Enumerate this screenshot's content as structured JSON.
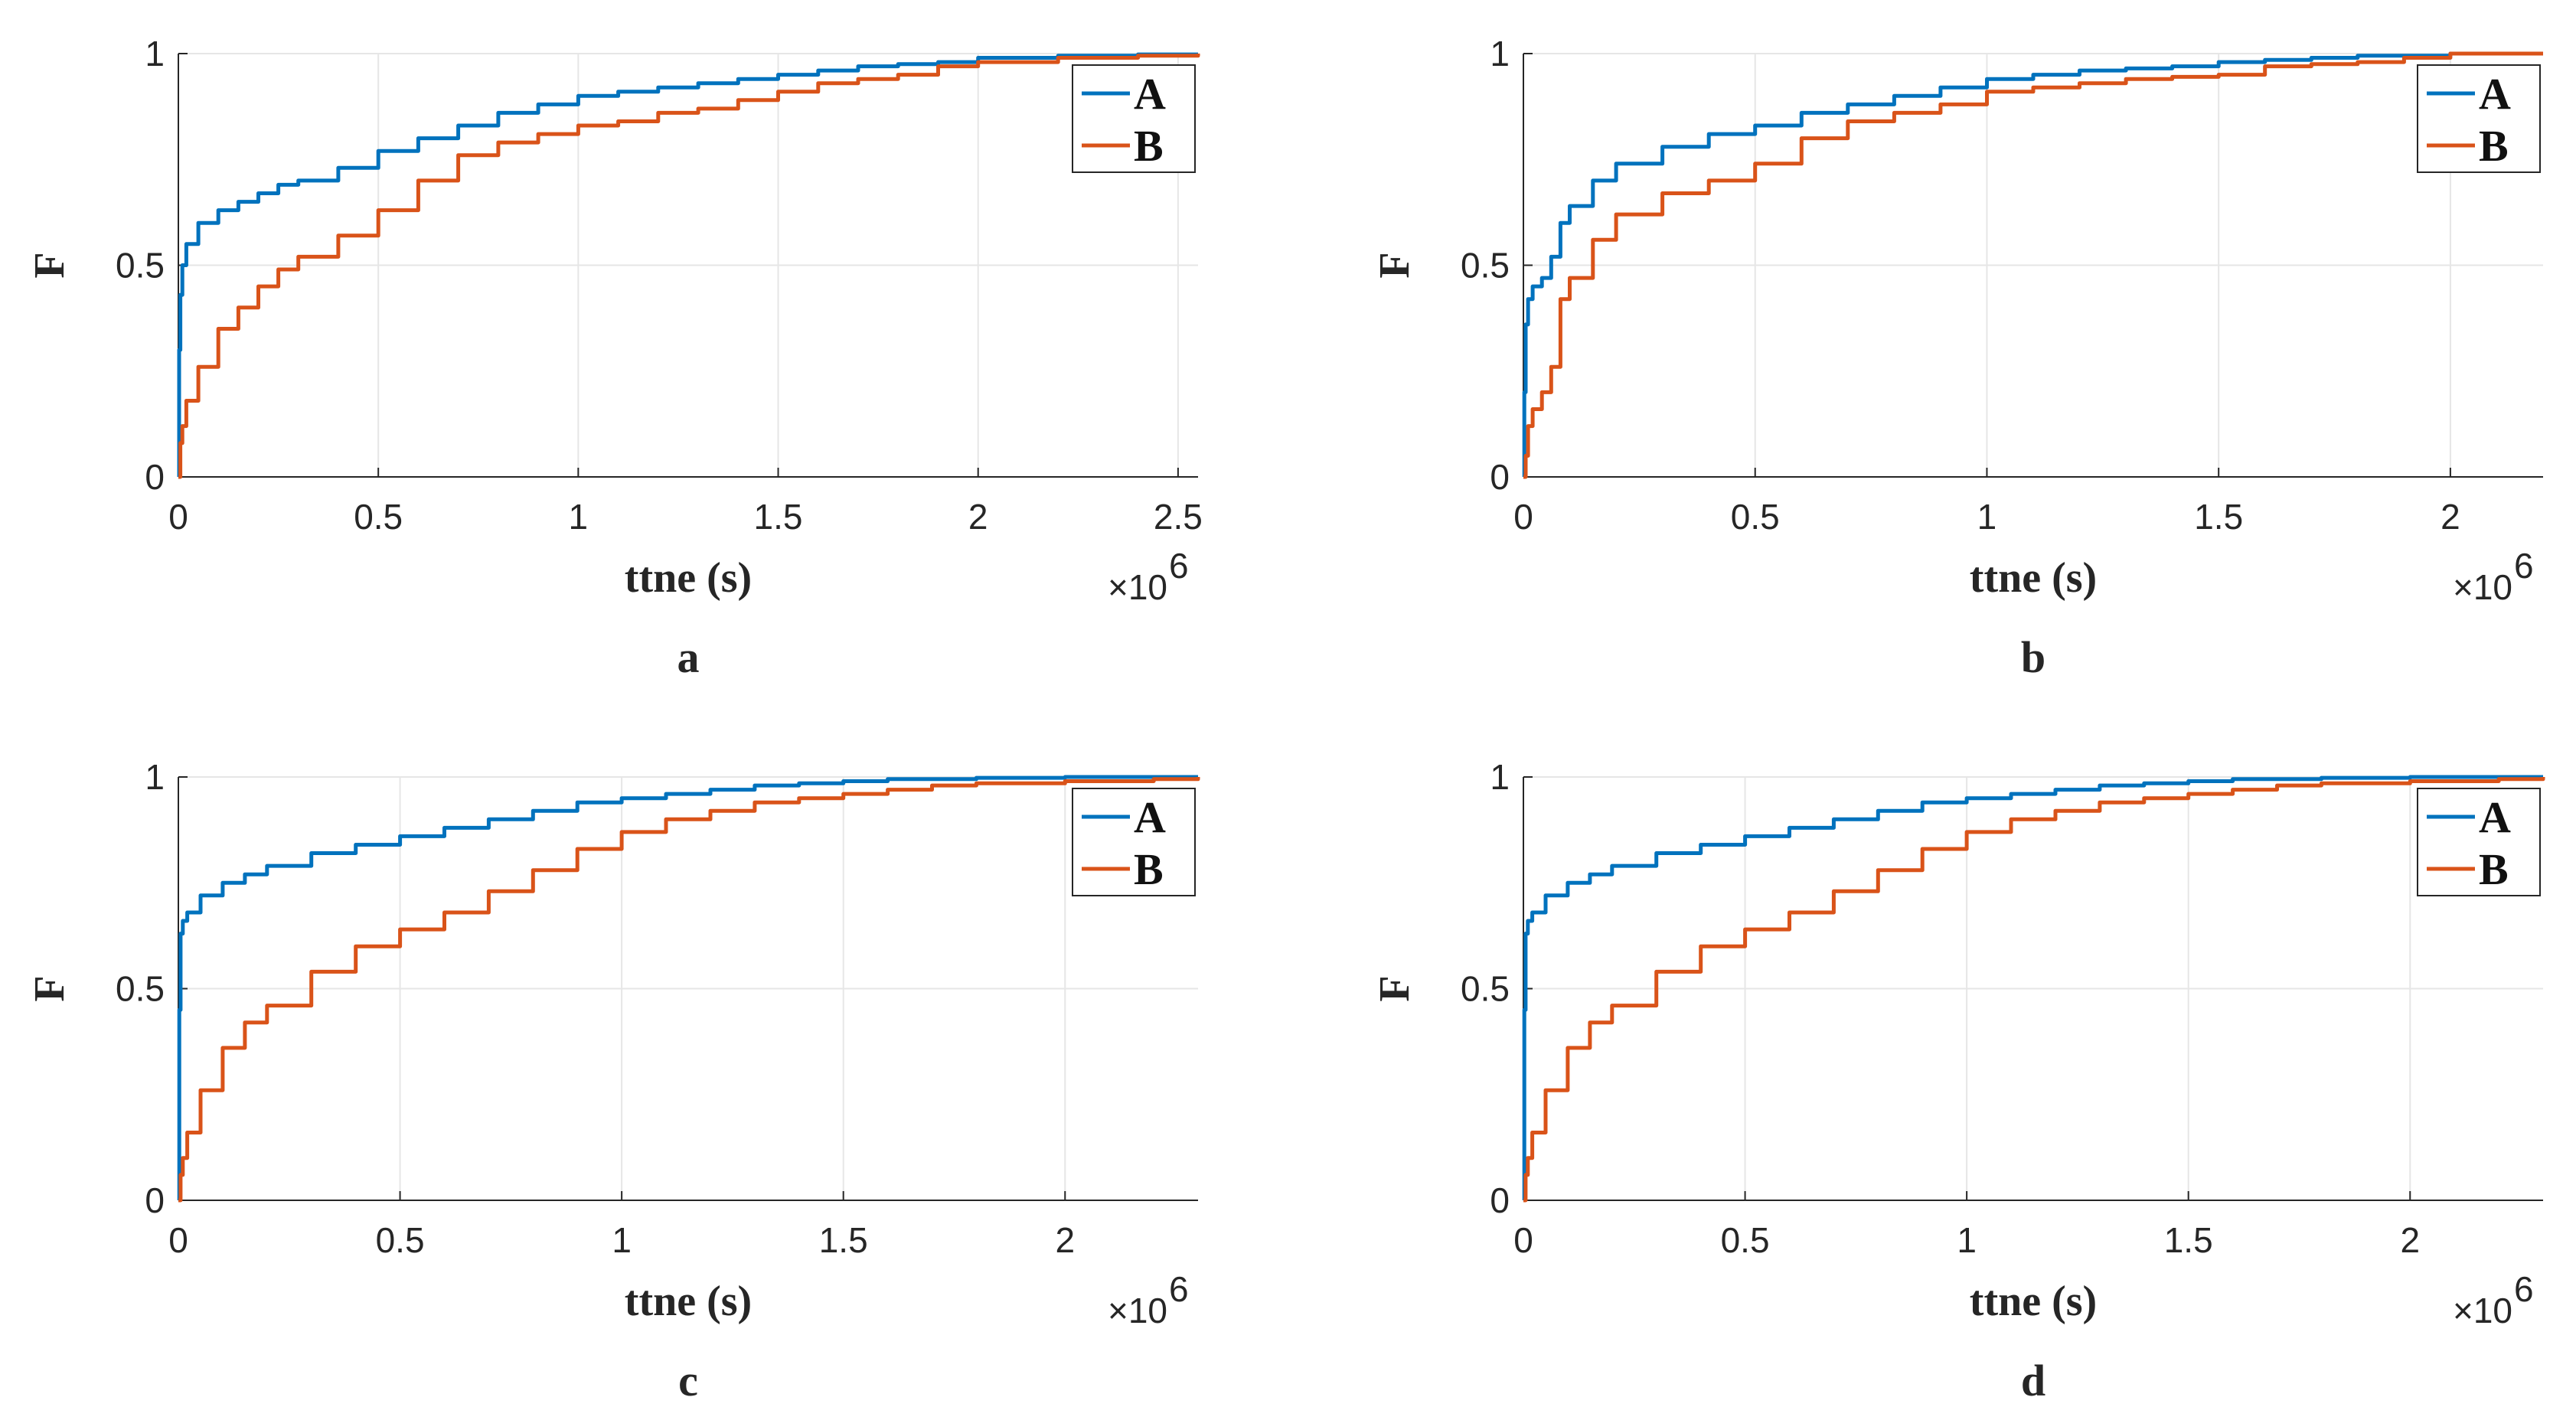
{
  "colors": {
    "A": "#0072BD",
    "B": "#D95319",
    "grid": "#e6e6e6",
    "axis": "#262626"
  },
  "chart_data": [
    {
      "type": "line",
      "panel_label": "a",
      "xlabel": "ttne (s)",
      "ylabel": "F",
      "x_exponent_base": "×10",
      "x_exponent_power": "6",
      "xlim": [
        0,
        2.55
      ],
      "ylim": [
        0,
        1
      ],
      "x_ticks": [
        0,
        0.5,
        1,
        1.5,
        2,
        2.5
      ],
      "x_tick_labels": [
        "0",
        "0.5",
        "1",
        "1.5",
        "2",
        "2.5"
      ],
      "y_ticks": [
        0,
        0.5,
        1
      ],
      "y_tick_labels": [
        "0",
        "0.5",
        "1"
      ],
      "grid": true,
      "legend_position": "top-right",
      "series": [
        {
          "name": "A",
          "x": [
            0,
            0.002,
            0.005,
            0.01,
            0.02,
            0.05,
            0.1,
            0.15,
            0.2,
            0.25,
            0.3,
            0.4,
            0.5,
            0.6,
            0.7,
            0.8,
            0.9,
            1.0,
            1.1,
            1.2,
            1.3,
            1.4,
            1.5,
            1.6,
            1.7,
            1.8,
            1.9,
            2.0,
            2.2,
            2.4,
            2.55
          ],
          "y": [
            0,
            0.3,
            0.43,
            0.5,
            0.55,
            0.6,
            0.63,
            0.65,
            0.67,
            0.69,
            0.7,
            0.73,
            0.77,
            0.8,
            0.83,
            0.86,
            0.88,
            0.9,
            0.91,
            0.92,
            0.93,
            0.94,
            0.95,
            0.96,
            0.97,
            0.975,
            0.98,
            0.99,
            0.995,
            0.998,
            1.0
          ]
        },
        {
          "name": "B",
          "x": [
            0,
            0.005,
            0.01,
            0.02,
            0.05,
            0.1,
            0.15,
            0.2,
            0.25,
            0.3,
            0.4,
            0.5,
            0.6,
            0.7,
            0.8,
            0.9,
            1.0,
            1.1,
            1.2,
            1.3,
            1.4,
            1.5,
            1.6,
            1.7,
            1.8,
            1.9,
            2.0,
            2.2,
            2.4,
            2.55
          ],
          "y": [
            0,
            0.08,
            0.12,
            0.18,
            0.26,
            0.35,
            0.4,
            0.45,
            0.49,
            0.52,
            0.57,
            0.63,
            0.7,
            0.76,
            0.79,
            0.81,
            0.83,
            0.84,
            0.86,
            0.87,
            0.89,
            0.91,
            0.93,
            0.94,
            0.95,
            0.97,
            0.98,
            0.99,
            0.995,
            1.0
          ]
        }
      ]
    },
    {
      "type": "line",
      "panel_label": "b",
      "xlabel": "ttne (s)",
      "ylabel": "F",
      "x_exponent_base": "×10",
      "x_exponent_power": "6",
      "xlim": [
        0,
        2.2
      ],
      "ylim": [
        0,
        1
      ],
      "x_ticks": [
        0,
        0.5,
        1,
        1.5,
        2
      ],
      "x_tick_labels": [
        "0",
        "0.5",
        "1",
        "1.5",
        "2"
      ],
      "y_ticks": [
        0,
        0.5,
        1
      ],
      "y_tick_labels": [
        "0",
        "0.5",
        "1"
      ],
      "grid": true,
      "legend_position": "top-right",
      "series": [
        {
          "name": "A",
          "x": [
            0,
            0.002,
            0.005,
            0.01,
            0.02,
            0.04,
            0.06,
            0.08,
            0.1,
            0.15,
            0.2,
            0.3,
            0.4,
            0.5,
            0.6,
            0.7,
            0.8,
            0.9,
            1.0,
            1.1,
            1.2,
            1.3,
            1.4,
            1.5,
            1.6,
            1.7,
            1.8,
            2.0,
            2.2
          ],
          "y": [
            0,
            0.2,
            0.36,
            0.42,
            0.45,
            0.47,
            0.52,
            0.6,
            0.64,
            0.7,
            0.74,
            0.78,
            0.81,
            0.83,
            0.86,
            0.88,
            0.9,
            0.92,
            0.94,
            0.95,
            0.96,
            0.965,
            0.97,
            0.98,
            0.985,
            0.99,
            0.995,
            1.0,
            1.0
          ]
        },
        {
          "name": "B",
          "x": [
            0,
            0.005,
            0.01,
            0.02,
            0.04,
            0.06,
            0.08,
            0.1,
            0.15,
            0.2,
            0.3,
            0.4,
            0.5,
            0.6,
            0.7,
            0.8,
            0.9,
            1.0,
            1.1,
            1.2,
            1.3,
            1.4,
            1.5,
            1.6,
            1.7,
            1.8,
            1.9,
            2.0,
            2.2
          ],
          "y": [
            0,
            0.05,
            0.12,
            0.16,
            0.2,
            0.26,
            0.42,
            0.47,
            0.56,
            0.62,
            0.67,
            0.7,
            0.74,
            0.8,
            0.84,
            0.86,
            0.88,
            0.91,
            0.92,
            0.93,
            0.94,
            0.945,
            0.95,
            0.97,
            0.975,
            0.98,
            0.99,
            1.0,
            1.0
          ]
        }
      ]
    },
    {
      "type": "line",
      "panel_label": "c",
      "xlabel": "ttne (s)",
      "ylabel": "F",
      "x_exponent_base": "×10",
      "x_exponent_power": "6",
      "xlim": [
        0,
        2.3
      ],
      "ylim": [
        0,
        1
      ],
      "x_ticks": [
        0,
        0.5,
        1,
        1.5,
        2
      ],
      "x_tick_labels": [
        "0",
        "0.5",
        "1",
        "1.5",
        "2"
      ],
      "y_ticks": [
        0,
        0.5,
        1
      ],
      "y_tick_labels": [
        "0",
        "0.5",
        "1"
      ],
      "grid": true,
      "legend_position": "top-right",
      "series": [
        {
          "name": "A",
          "x": [
            0,
            0.002,
            0.005,
            0.01,
            0.02,
            0.05,
            0.1,
            0.15,
            0.2,
            0.3,
            0.4,
            0.5,
            0.6,
            0.7,
            0.8,
            0.9,
            1.0,
            1.1,
            1.2,
            1.3,
            1.4,
            1.5,
            1.6,
            1.8,
            2.0,
            2.3
          ],
          "y": [
            0,
            0.45,
            0.63,
            0.66,
            0.68,
            0.72,
            0.75,
            0.77,
            0.79,
            0.82,
            0.84,
            0.86,
            0.88,
            0.9,
            0.92,
            0.94,
            0.95,
            0.96,
            0.97,
            0.98,
            0.985,
            0.99,
            0.995,
            0.998,
            1.0,
            1.0
          ]
        },
        {
          "name": "B",
          "x": [
            0,
            0.005,
            0.01,
            0.02,
            0.05,
            0.1,
            0.15,
            0.2,
            0.3,
            0.4,
            0.5,
            0.6,
            0.7,
            0.8,
            0.9,
            1.0,
            1.1,
            1.2,
            1.3,
            1.4,
            1.5,
            1.6,
            1.7,
            1.8,
            2.0,
            2.2,
            2.3
          ],
          "y": [
            0,
            0.06,
            0.1,
            0.16,
            0.26,
            0.36,
            0.42,
            0.46,
            0.54,
            0.6,
            0.64,
            0.68,
            0.73,
            0.78,
            0.83,
            0.87,
            0.9,
            0.92,
            0.94,
            0.95,
            0.96,
            0.97,
            0.98,
            0.985,
            0.99,
            0.995,
            1.0
          ]
        }
      ]
    },
    {
      "type": "line",
      "panel_label": "d",
      "xlabel": "ttne (s)",
      "ylabel": "F",
      "x_exponent_base": "×10",
      "x_exponent_power": "6",
      "xlim": [
        0,
        2.3
      ],
      "ylim": [
        0,
        1
      ],
      "x_ticks": [
        0,
        0.5,
        1,
        1.5,
        2
      ],
      "x_tick_labels": [
        "0",
        "0.5",
        "1",
        "1.5",
        "2"
      ],
      "y_ticks": [
        0,
        0.5,
        1
      ],
      "y_tick_labels": [
        "0",
        "0.5",
        "1"
      ],
      "grid": true,
      "legend_position": "top-right",
      "series": [
        {
          "name": "A",
          "x": [
            0,
            0.002,
            0.005,
            0.01,
            0.02,
            0.05,
            0.1,
            0.15,
            0.2,
            0.3,
            0.4,
            0.5,
            0.6,
            0.7,
            0.8,
            0.9,
            1.0,
            1.1,
            1.2,
            1.3,
            1.4,
            1.5,
            1.6,
            1.8,
            2.0,
            2.3
          ],
          "y": [
            0,
            0.45,
            0.63,
            0.66,
            0.68,
            0.72,
            0.75,
            0.77,
            0.79,
            0.82,
            0.84,
            0.86,
            0.88,
            0.9,
            0.92,
            0.94,
            0.95,
            0.96,
            0.97,
            0.98,
            0.985,
            0.99,
            0.995,
            0.998,
            1.0,
            1.0
          ]
        },
        {
          "name": "B",
          "x": [
            0,
            0.005,
            0.01,
            0.02,
            0.05,
            0.1,
            0.15,
            0.2,
            0.3,
            0.4,
            0.5,
            0.6,
            0.7,
            0.8,
            0.9,
            1.0,
            1.1,
            1.2,
            1.3,
            1.4,
            1.5,
            1.6,
            1.7,
            1.8,
            2.0,
            2.2,
            2.3
          ],
          "y": [
            0,
            0.06,
            0.1,
            0.16,
            0.26,
            0.36,
            0.42,
            0.46,
            0.54,
            0.6,
            0.64,
            0.68,
            0.73,
            0.78,
            0.83,
            0.87,
            0.9,
            0.92,
            0.94,
            0.95,
            0.96,
            0.97,
            0.98,
            0.985,
            0.99,
            0.995,
            1.0
          ]
        }
      ]
    }
  ]
}
